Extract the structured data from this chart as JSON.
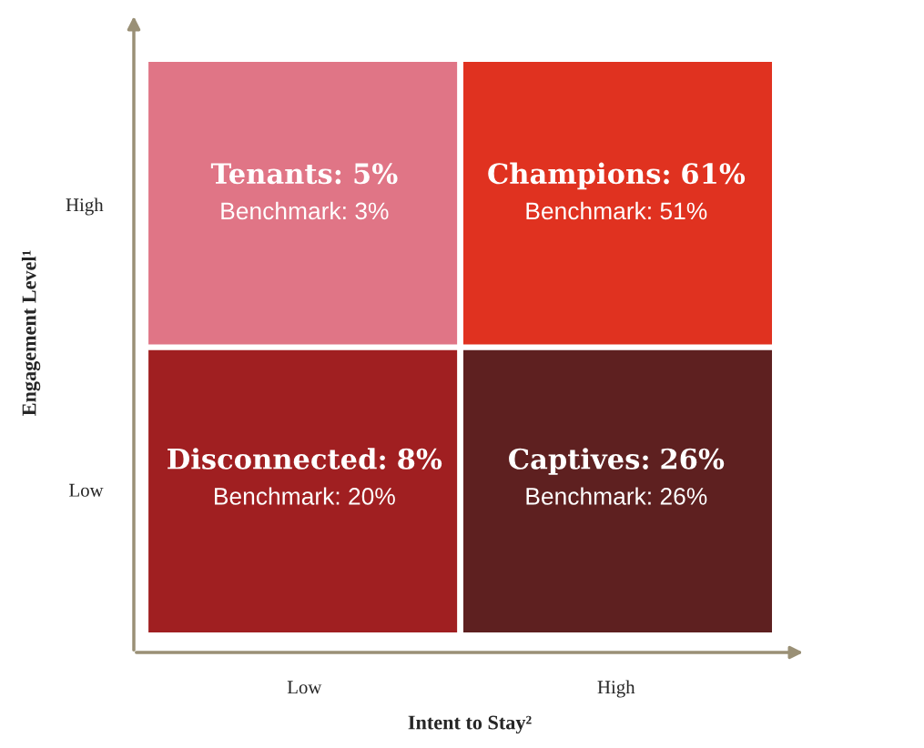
{
  "chart_data": {
    "type": "heatmap",
    "categories": [
      "Low",
      "High"
    ],
    "y_categories": [
      "High",
      "Low"
    ],
    "cells": [
      [
        5,
        61
      ],
      [
        8,
        26
      ]
    ],
    "cell_labels": [
      [
        "5%",
        "61%"
      ],
      [
        "8%",
        "26%"
      ]
    ],
    "colors": [
      [
        "#e07586",
        "#e03220"
      ],
      [
        "#a01f21",
        "#5e2020"
      ]
    ],
    "annotations": [
      "Tenants:",
      "Benchmark: 3%",
      "Champions:",
      "Benchmark: 51%",
      "Disconnected:",
      "Benchmark: 20%",
      "Captives:",
      "Benchmark: 26%"
    ],
    "xlabel": "Intent to Stay²",
    "ylabel": "Engagement Level¹"
  }
}
